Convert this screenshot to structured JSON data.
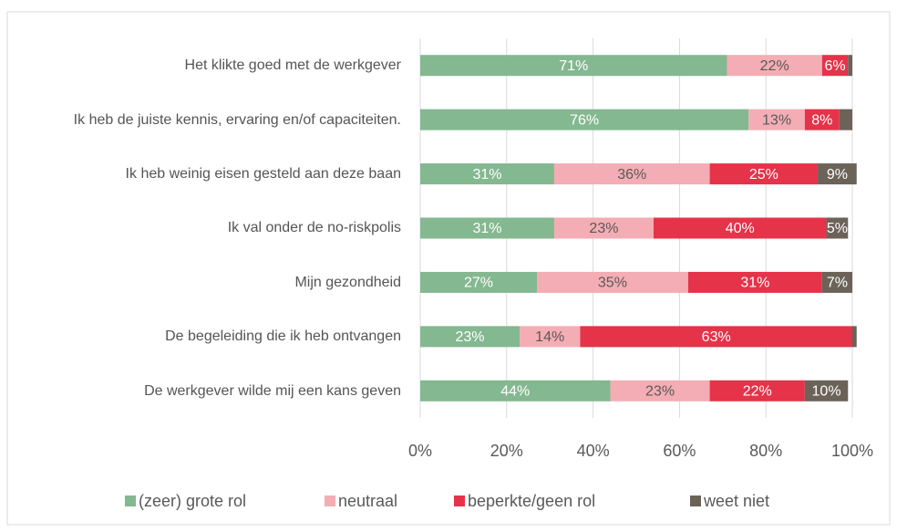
{
  "chart_data": {
    "type": "stacked_barh",
    "categories": [
      "Het klikte goed met de werkgever",
      "Ik heb de juiste kennis, ervaring en/of capaciteiten.",
      "Ik heb weinig eisen gesteld aan deze baan",
      "Ik val onder de no-riskpolis",
      "Mijn gezondheid",
      "De begeleiding die ik heb ontvangen",
      "De werkgever wilde mij een kans geven"
    ],
    "series": [
      {
        "name": "(zeer) grote rol",
        "color": "#84b890",
        "values": [
          71,
          76,
          31,
          31,
          27,
          23,
          44
        ],
        "value_labels": [
          "71%",
          "76%",
          "31%",
          "31%",
          "27%",
          "23%",
          "44%"
        ]
      },
      {
        "name": "neutraal",
        "color": "#f4adb4",
        "values": [
          22,
          13,
          36,
          23,
          35,
          14,
          23
        ],
        "value_labels": [
          "22%",
          "13%",
          "36%",
          "23%",
          "35%",
          "14%",
          "23%"
        ]
      },
      {
        "name": "beperkte/geen rol",
        "color": "#e5334a",
        "values": [
          6,
          8,
          25,
          40,
          31,
          63,
          22
        ],
        "value_labels": [
          "6%",
          "8%",
          "25%",
          "40%",
          "31%",
          "63%",
          "22%"
        ]
      },
      {
        "name": "weet niet",
        "color": "#6b6358",
        "values": [
          1,
          3,
          9,
          5,
          7,
          1,
          10
        ],
        "value_labels": [
          null,
          null,
          "9%",
          "5%",
          "7%",
          null,
          "10%"
        ]
      }
    ],
    "xlim": [
      0,
      100
    ],
    "xticks": [
      {
        "value": 0,
        "label": "0%"
      },
      {
        "value": 20,
        "label": "20%"
      },
      {
        "value": 40,
        "label": "40%"
      },
      {
        "value": 60,
        "label": "60%"
      },
      {
        "value": 80,
        "label": "80%"
      },
      {
        "value": 100,
        "label": "100%"
      }
    ],
    "grid": true,
    "legend": "bottom"
  }
}
